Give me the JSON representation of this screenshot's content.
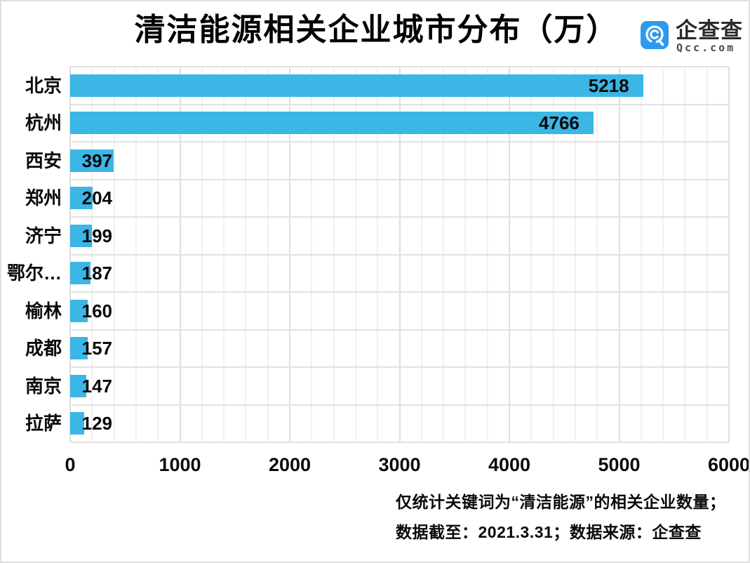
{
  "title": "清洁能源相关企业城市分布（万）",
  "logo": {
    "name_cn": "企查查",
    "name_en": "Qcc.com",
    "icon": "qcc-magnifier-icon",
    "brand_color": "#2e9aef"
  },
  "chart_data": {
    "type": "bar",
    "orientation": "horizontal",
    "title": "清洁能源相关企业城市分布（万）",
    "categories": [
      "北京",
      "杭州",
      "西安",
      "郑州",
      "济宁",
      "鄂尔…",
      "榆林",
      "成都",
      "南京",
      "拉萨"
    ],
    "values": [
      5218,
      4766,
      397,
      204,
      199,
      187,
      160,
      157,
      147,
      129
    ],
    "xlim": [
      0,
      6000
    ],
    "x_ticks": [
      0,
      1000,
      2000,
      3000,
      4000,
      5000,
      6000
    ],
    "minor_tick_step": 200,
    "grid": true,
    "legend": false,
    "bar_color": "#3bb6e5",
    "label_color": "#0a0a0a"
  },
  "footnotes": [
    "仅统计关键词为“清洁能源”的相关企业数量；",
    "数据截至：2021.3.31；数据来源：企查查"
  ]
}
